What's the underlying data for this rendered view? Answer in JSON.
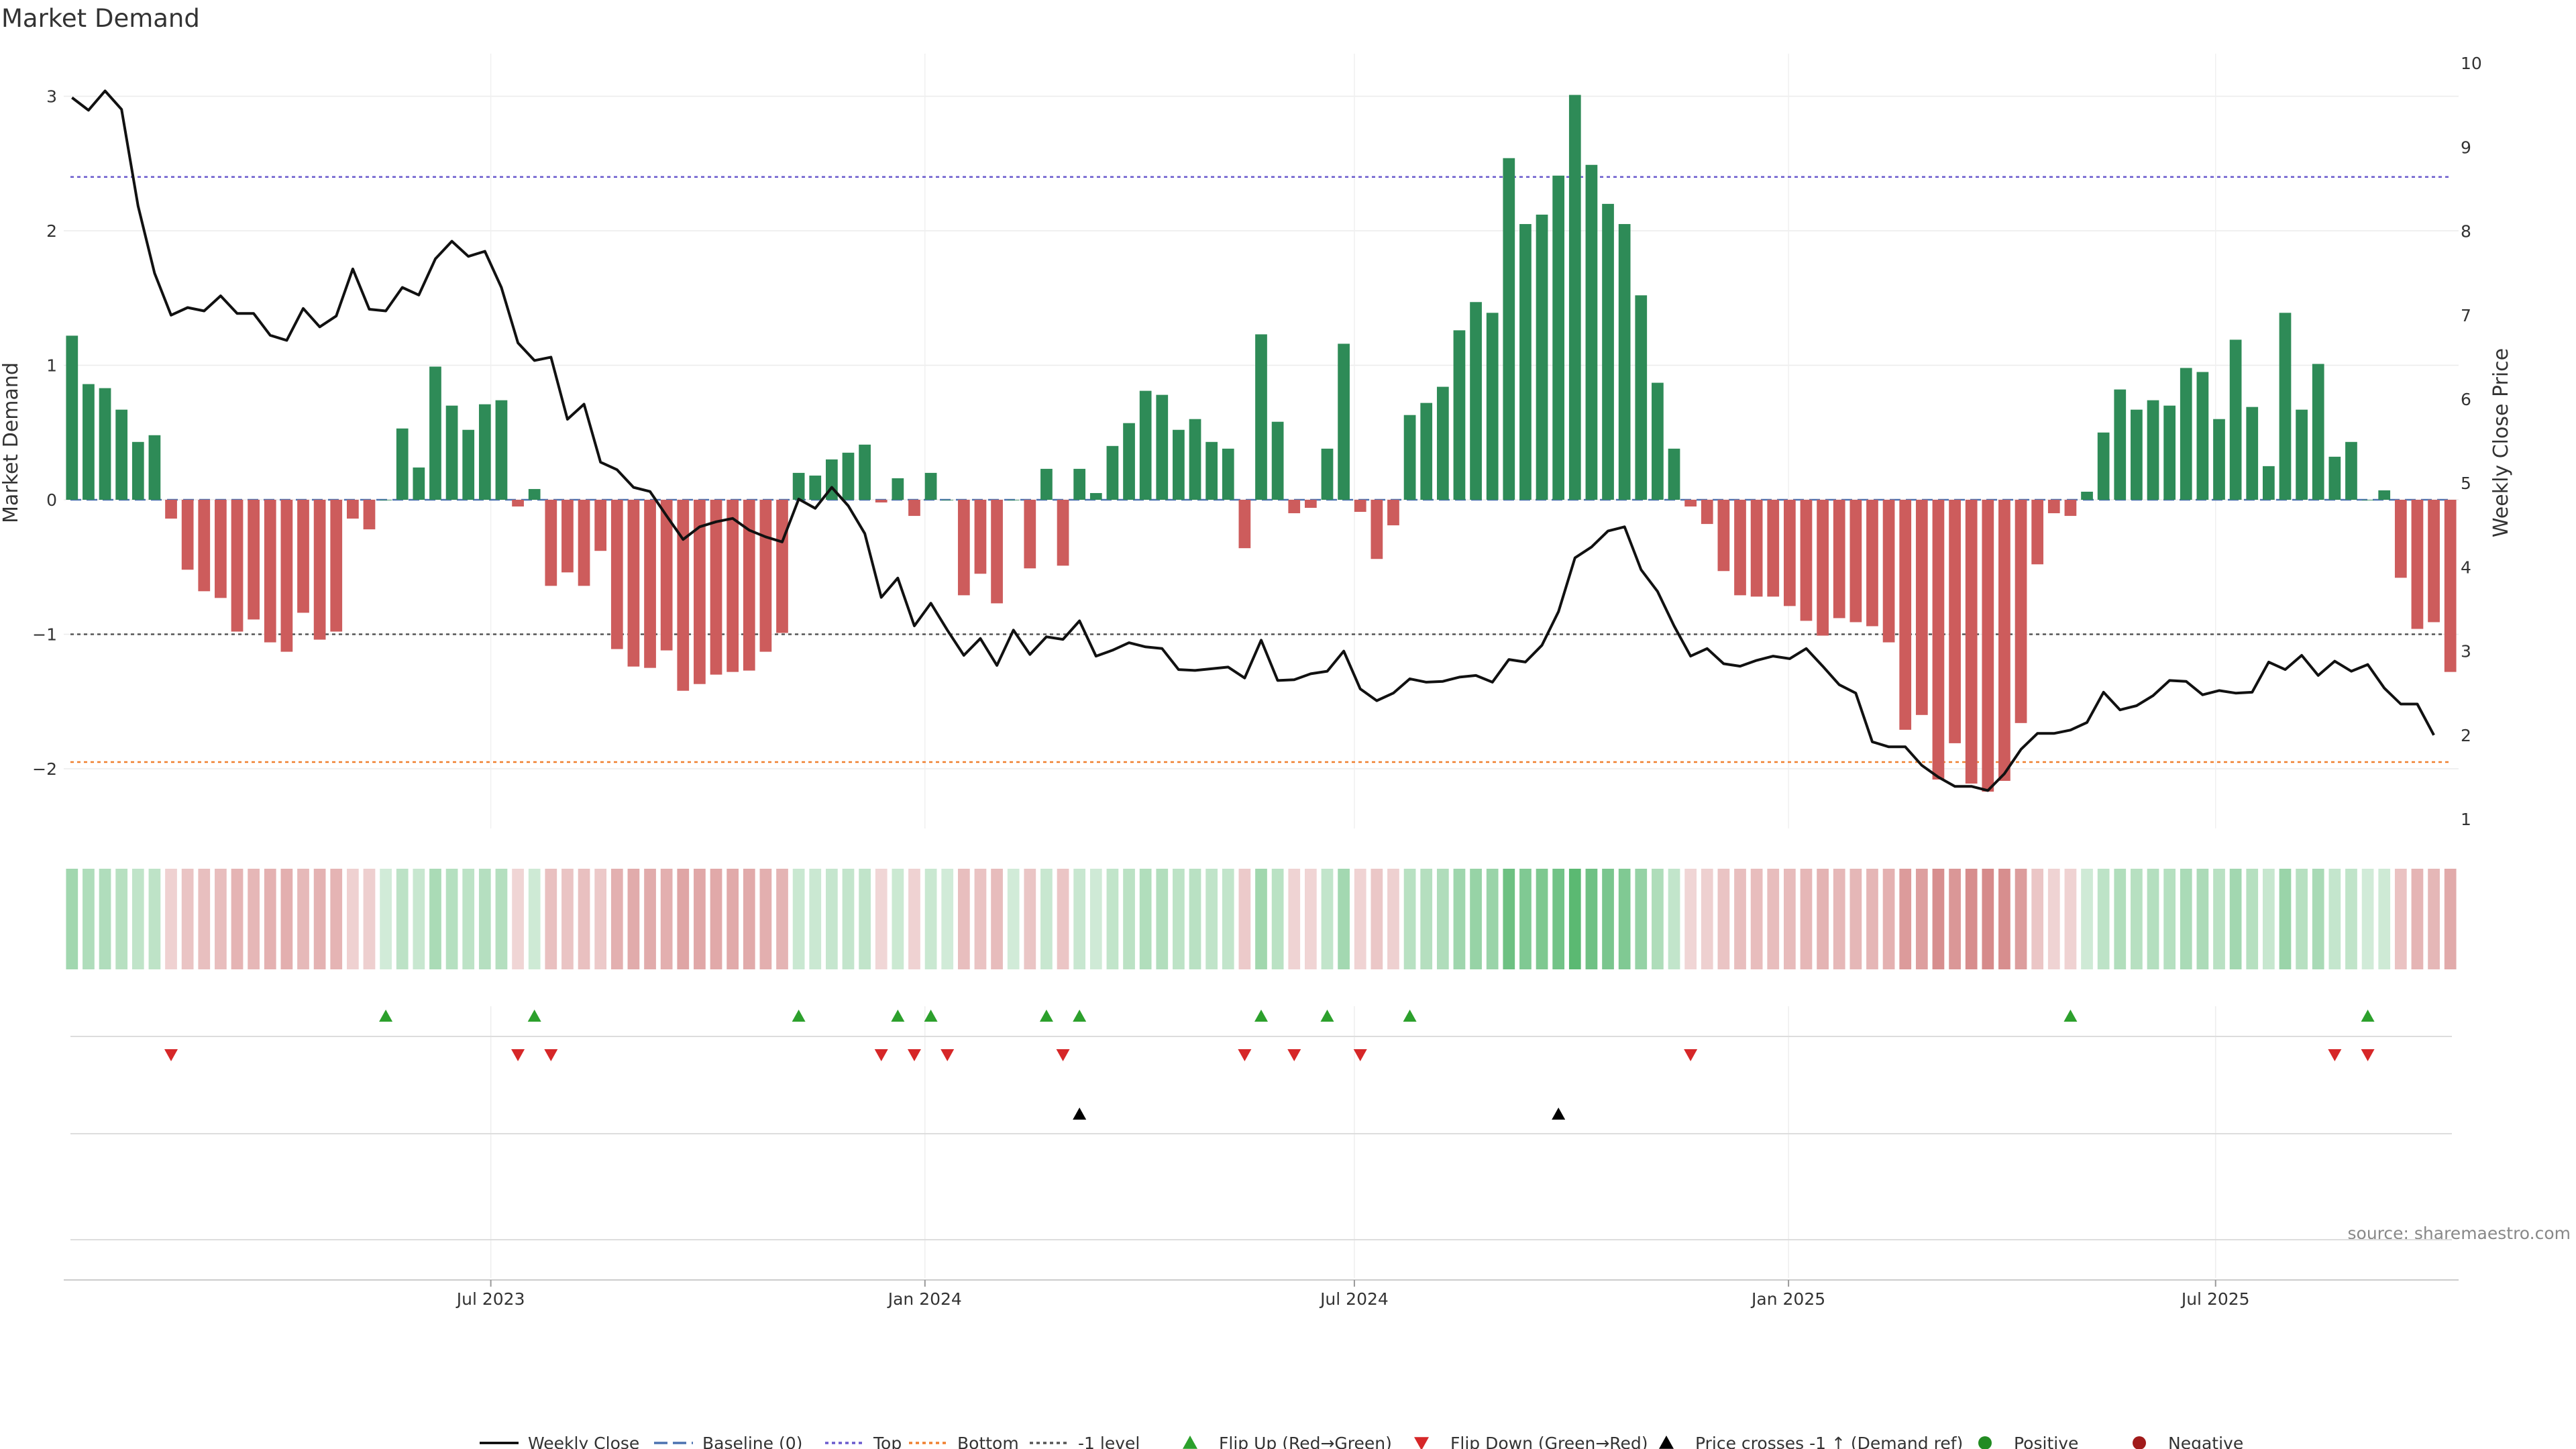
{
  "chart_data": {
    "type": "bar",
    "title": "Market Demand",
    "ylabel": "Market Demand",
    "y2label": "Weekly Close Price",
    "ylim": [
      -2.45,
      3.0
    ],
    "y2lim": [
      1,
      10
    ],
    "yticks": [
      -2,
      -1,
      0,
      1,
      2,
      3
    ],
    "y2ticks": [
      1,
      2,
      3,
      4,
      5,
      6,
      7,
      8,
      9,
      10
    ],
    "x_start": "2023-01-01",
    "week_days": 7,
    "xticks": [
      {
        "label": "Jul 2023",
        "date": "2023-07-01"
      },
      {
        "label": "Jan 2024",
        "date": "2024-01-01"
      },
      {
        "label": "Jul 2024",
        "date": "2024-07-01"
      },
      {
        "label": "Jan 2025",
        "date": "2025-01-01"
      },
      {
        "label": "Jul 2025",
        "date": "2025-07-01"
      }
    ],
    "reference_lines": [
      {
        "name": "Baseline (0)",
        "value": 0,
        "color": "#4c72b0",
        "style": "dashed"
      },
      {
        "name": "Top",
        "value": 2.4,
        "color": "#6a5acd",
        "style": "dotted"
      },
      {
        "name": "Bottom",
        "value": -1.95,
        "color": "#f08030",
        "style": "dotted"
      },
      {
        "name": "-1 level",
        "value": -1,
        "color": "#555555",
        "style": "dotted"
      }
    ],
    "demand": [
      1.22,
      0.86,
      0.83,
      0.67,
      0.43,
      0.48,
      -0.14,
      -0.52,
      -0.68,
      -0.73,
      -0.98,
      -0.89,
      -1.06,
      -1.13,
      -0.84,
      -1.04,
      -0.98,
      -0.14,
      -0.22,
      0.0,
      0.53,
      0.24,
      0.99,
      0.7,
      0.52,
      0.71,
      0.74,
      -0.05,
      0.08,
      -0.64,
      -0.54,
      -0.64,
      -0.38,
      -1.11,
      -1.24,
      -1.25,
      -1.12,
      -1.42,
      -1.37,
      -1.3,
      -1.28,
      -1.27,
      -1.13,
      -0.99,
      0.2,
      0.18,
      0.3,
      0.35,
      0.41,
      -0.02,
      0.16,
      -0.12,
      0.2,
      0.0,
      -0.71,
      -0.55,
      -0.77,
      0.0,
      -0.51,
      0.23,
      -0.49,
      0.23,
      0.05,
      0.4,
      0.57,
      0.81,
      0.78,
      0.52,
      0.6,
      0.43,
      0.38,
      -0.36,
      1.23,
      0.58,
      -0.1,
      -0.06,
      0.38,
      1.16,
      -0.09,
      -0.44,
      -0.19,
      0.63,
      0.72,
      0.84,
      1.26,
      1.47,
      1.39,
      2.54,
      2.05,
      2.12,
      2.41,
      3.01,
      2.49,
      2.2,
      2.05,
      1.52,
      0.87,
      0.38,
      -0.05,
      -0.18,
      -0.53,
      -0.71,
      -0.72,
      -0.72,
      -0.79,
      -0.9,
      -1.01,
      -0.88,
      -0.91,
      -0.94,
      -1.06,
      -1.71,
      -1.6,
      -2.08,
      -1.81,
      -2.11,
      -2.17,
      -2.09,
      -1.66,
      -0.48,
      -0.1,
      -0.12,
      0.06,
      0.5,
      0.82,
      0.67,
      0.74,
      0.7,
      0.98,
      0.95,
      0.6,
      1.19,
      0.69,
      0.25,
      1.39,
      0.67,
      1.01,
      0.32,
      0.43,
      0.0,
      0.07,
      -0.58,
      -0.96,
      -0.91,
      -1.28
    ],
    "price": [
      9.59,
      9.44,
      9.67,
      9.45,
      8.3,
      7.5,
      7.0,
      7.09,
      7.05,
      7.23,
      7.02,
      7.02,
      6.76,
      6.7,
      7.08,
      6.86,
      6.99,
      7.55,
      7.07,
      7.05,
      7.33,
      7.24,
      7.67,
      7.88,
      7.7,
      7.76,
      7.33,
      6.67,
      6.46,
      6.5,
      5.76,
      5.94,
      5.25,
      5.16,
      4.95,
      4.9,
      4.61,
      4.33,
      4.48,
      4.54,
      4.58,
      4.44,
      4.36,
      4.3,
      4.81,
      4.7,
      4.95,
      4.73,
      4.4,
      3.64,
      3.87,
      3.3,
      3.57,
      3.25,
      2.95,
      3.15,
      2.83,
      3.25,
      2.96,
      3.17,
      3.14,
      3.36,
      2.94,
      3.01,
      3.1,
      3.05,
      3.03,
      2.78,
      2.77,
      2.79,
      2.81,
      2.68,
      3.13,
      2.65,
      2.66,
      2.73,
      2.76,
      3.0,
      2.55,
      2.41,
      2.5,
      2.67,
      2.63,
      2.64,
      2.69,
      2.71,
      2.63,
      2.9,
      2.87,
      3.07,
      3.47,
      4.11,
      4.24,
      4.43,
      4.48,
      3.97,
      3.71,
      3.3,
      2.94,
      3.03,
      2.85,
      2.82,
      2.89,
      2.94,
      2.91,
      3.03,
      2.82,
      2.6,
      2.5,
      1.92,
      1.86,
      1.86,
      1.64,
      1.5,
      1.39,
      1.39,
      1.34,
      1.54,
      1.83,
      2.02,
      2.02,
      2.06,
      2.15,
      2.51,
      2.3,
      2.35,
      2.47,
      2.65,
      2.64,
      2.48,
      2.53,
      2.5,
      2.51,
      2.87,
      2.78,
      2.95,
      2.71,
      2.88,
      2.76,
      2.84,
      2.56,
      2.37,
      2.37,
      2.0
    ],
    "flip_up_weeks": [
      19,
      28,
      44,
      50,
      52,
      59,
      61,
      72,
      76,
      81,
      121,
      139
    ],
    "flip_down_weeks": [
      6,
      27,
      29,
      49,
      51,
      53,
      60,
      71,
      74,
      78,
      98,
      137,
      139
    ],
    "price_cross_weeks": [
      61,
      90
    ],
    "legend": [
      {
        "label": "Weekly Close",
        "kind": "line",
        "color": "#000000"
      },
      {
        "label": "Baseline (0)",
        "kind": "dashed",
        "color": "#4c72b0"
      },
      {
        "label": "Top",
        "kind": "dotted",
        "color": "#6a5acd"
      },
      {
        "label": "Bottom",
        "kind": "dotted",
        "color": "#f08030"
      },
      {
        "label": "-1 level",
        "kind": "dotted",
        "color": "#555555"
      },
      {
        "label": "Flip Up (Red→Green)",
        "kind": "tri-up",
        "color": "#2ca02c"
      },
      {
        "label": "Flip Down (Green→Red)",
        "kind": "tri-down",
        "color": "#d62728"
      },
      {
        "label": "Price crosses -1 ↑ (Demand ref)",
        "kind": "tri-up",
        "color": "#000000"
      },
      {
        "label": "Positive",
        "kind": "dot",
        "color": "#228b22"
      },
      {
        "label": "Negative",
        "kind": "dot",
        "color": "#a11a1a"
      }
    ],
    "colors": {
      "positive": "#2e8b57",
      "negative": "#cd5c5c",
      "price": "#111111"
    },
    "source": "source: sharemaestro.com"
  }
}
